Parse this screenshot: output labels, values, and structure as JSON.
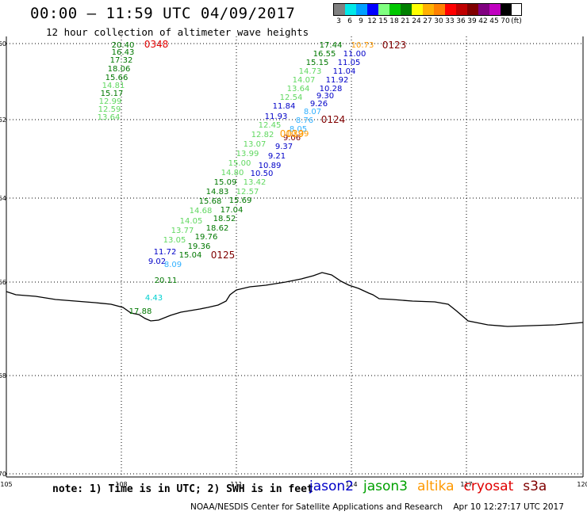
{
  "header": {
    "title": "00:00 – 11:59 UTC 04/09/2017",
    "subtitle": "12 hour collection of altimeter wave heights"
  },
  "color_scale": {
    "labels": [
      "3",
      "6",
      "9",
      "12",
      "15",
      "18",
      "21",
      "24",
      "27",
      "30",
      "33",
      "36",
      "39",
      "42",
      "45",
      "70",
      "(ft)"
    ],
    "colors": [
      "#808080",
      "#00e8e8",
      "#00a0ff",
      "#0000ff",
      "#80ff80",
      "#00c800",
      "#008000",
      "#ffff00",
      "#ffb000",
      "#ff8000",
      "#ff0000",
      "#c00000",
      "#800000",
      "#800080",
      "#c000c0",
      "#000000"
    ]
  },
  "map": {
    "lat_labels": [
      "-60",
      "-62",
      "-64",
      "-66",
      "-68",
      "-70"
    ],
    "lon_labels": [
      "105",
      "108",
      "111",
      "114",
      "117",
      "120"
    ],
    "times": [
      "0348",
      "0125",
      "0124",
      "0123",
      "0039"
    ],
    "obs_track_a": [
      "20.40",
      "16.43",
      "17.32",
      "18.06",
      "15.66",
      "14.81",
      "15.17",
      "12.99",
      "12.59",
      "13.64"
    ],
    "obs_track_b": [
      "17.44",
      "16.55",
      "15.15",
      "14.73",
      "14.07",
      "13.64",
      "12.54",
      "11.84",
      "11.93",
      "12.45",
      "12.82",
      "13.07",
      "13.99",
      "15.00",
      "14.80",
      "15.09",
      "14.83",
      "15.68",
      "14.68",
      "14.05",
      "13.77",
      "13.05",
      "15.04",
      "20.11",
      "17.88",
      "4.43"
    ],
    "obs_track_c": [
      "10.73",
      "11.00",
      "11.05",
      "11.04",
      "11.92",
      "10.28",
      "9.30",
      "9.26",
      "8.07",
      "8.76",
      "8.05",
      "9.37",
      "9.21",
      "10.89",
      "10.50",
      "13.42",
      "12.57",
      "15.69",
      "17.04",
      "18.52",
      "18.62",
      "19.76",
      "19.36",
      "11.72",
      "9.02",
      "8.09",
      "9.06",
      "10.39"
    ]
  },
  "footer": {
    "note": "note: 1) Time is in UTC; 2) SWH is in feet",
    "legend": [
      {
        "name": "jason2",
        "color": "#0000c8"
      },
      {
        "name": "jason3",
        "color": "#00a000"
      },
      {
        "name": "altika",
        "color": "#ff9900"
      },
      {
        "name": "cryosat",
        "color": "#e00000"
      },
      {
        "name": "s3a",
        "color": "#800000"
      }
    ],
    "credit": "NOAA/NESDIS Center for Satellite Applications and Research    Apr 10 12:27:17 UTC 2017"
  }
}
